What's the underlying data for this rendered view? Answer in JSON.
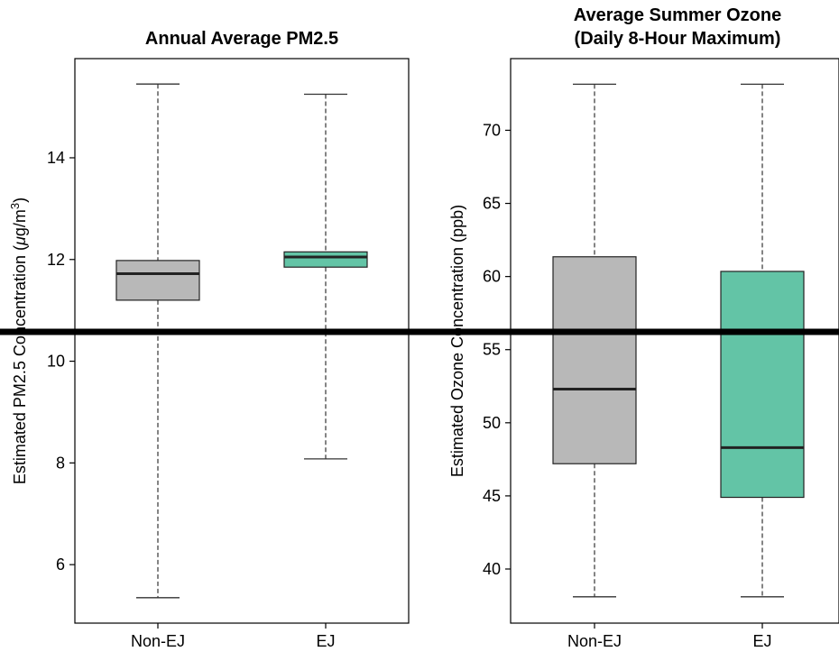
{
  "chart_data": [
    {
      "type": "box",
      "title_lines": [
        "Annual Average PM2.5"
      ],
      "ylabel_text": "Estimated PM2.5 Concentration (",
      "ylabel_unit_mu": "μ",
      "ylabel_unit_base": "g/m",
      "ylabel_unit_sup": "3",
      "ylabel_close": ")",
      "ylim": [
        4.85,
        15.95
      ],
      "yticks": [
        6,
        8,
        10,
        12,
        14
      ],
      "categories": [
        "Non-EJ",
        "EJ"
      ],
      "boxes": [
        {
          "category": "Non-EJ",
          "whisker_low": 5.35,
          "q1": 11.2,
          "median": 11.72,
          "q3": 11.98,
          "whisker_high": 15.45,
          "color": "#b8b8b8"
        },
        {
          "category": "EJ",
          "whisker_low": 8.08,
          "q1": 11.85,
          "median": 12.05,
          "q3": 12.15,
          "whisker_high": 15.25,
          "color": "#63c4a6"
        }
      ]
    },
    {
      "type": "box",
      "title_lines": [
        "Average Summer Ozone",
        "(Daily 8-Hour Maximum)"
      ],
      "ylabel_text": "Estimated Ozone Concentration (ppb)",
      "ylim": [
        36.3,
        74.9
      ],
      "yticks": [
        40,
        45,
        50,
        55,
        60,
        65,
        70
      ],
      "categories": [
        "Non-EJ",
        "EJ"
      ],
      "boxes": [
        {
          "category": "Non-EJ",
          "whisker_low": 38.1,
          "q1": 47.2,
          "median": 52.3,
          "q3": 61.35,
          "whisker_high": 73.15,
          "color": "#b8b8b8"
        },
        {
          "category": "EJ",
          "whisker_low": 38.1,
          "q1": 44.9,
          "median": 48.3,
          "q3": 60.35,
          "whisker_high": 73.15,
          "color": "#63c4a6"
        }
      ]
    }
  ],
  "overlay_line_color": "#000000"
}
